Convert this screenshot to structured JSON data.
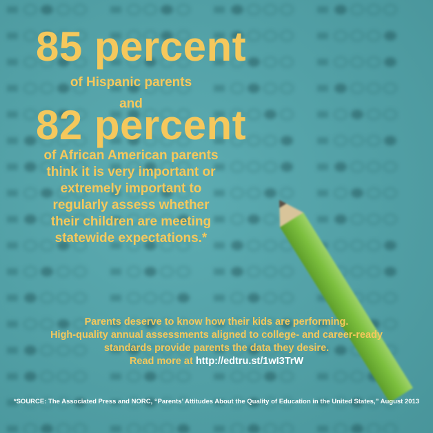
{
  "headline1": "85 percent",
  "line1": "of Hispanic parents",
  "connector": "and",
  "headline2": "82 percent",
  "paragraph_lines": [
    "of African American parents",
    "think it is very important or",
    "extremely important to",
    "regularly assess whether",
    "their children are meeting",
    "statewide expectations.*"
  ],
  "message_lines": [
    "Parents deserve to know how their kids are performing.",
    "High-quality annual assessments aligned to college- and career-ready",
    "standards provide parents the data they desire."
  ],
  "read_more_prefix": "Read more at ",
  "read_more_url": "http://edtru.st/1wI3TrW",
  "source": "*SOURCE: The Associated Press and NORC, “Parents’ Attitudes About the Quality of Education in the United States,” August 2013",
  "colors": {
    "background": "#5aaab0",
    "highlight_text": "#f5c85c",
    "link_text": "#ffffff",
    "pencil": "#7cbf3e"
  },
  "icons": [
    "pencil-icon"
  ]
}
